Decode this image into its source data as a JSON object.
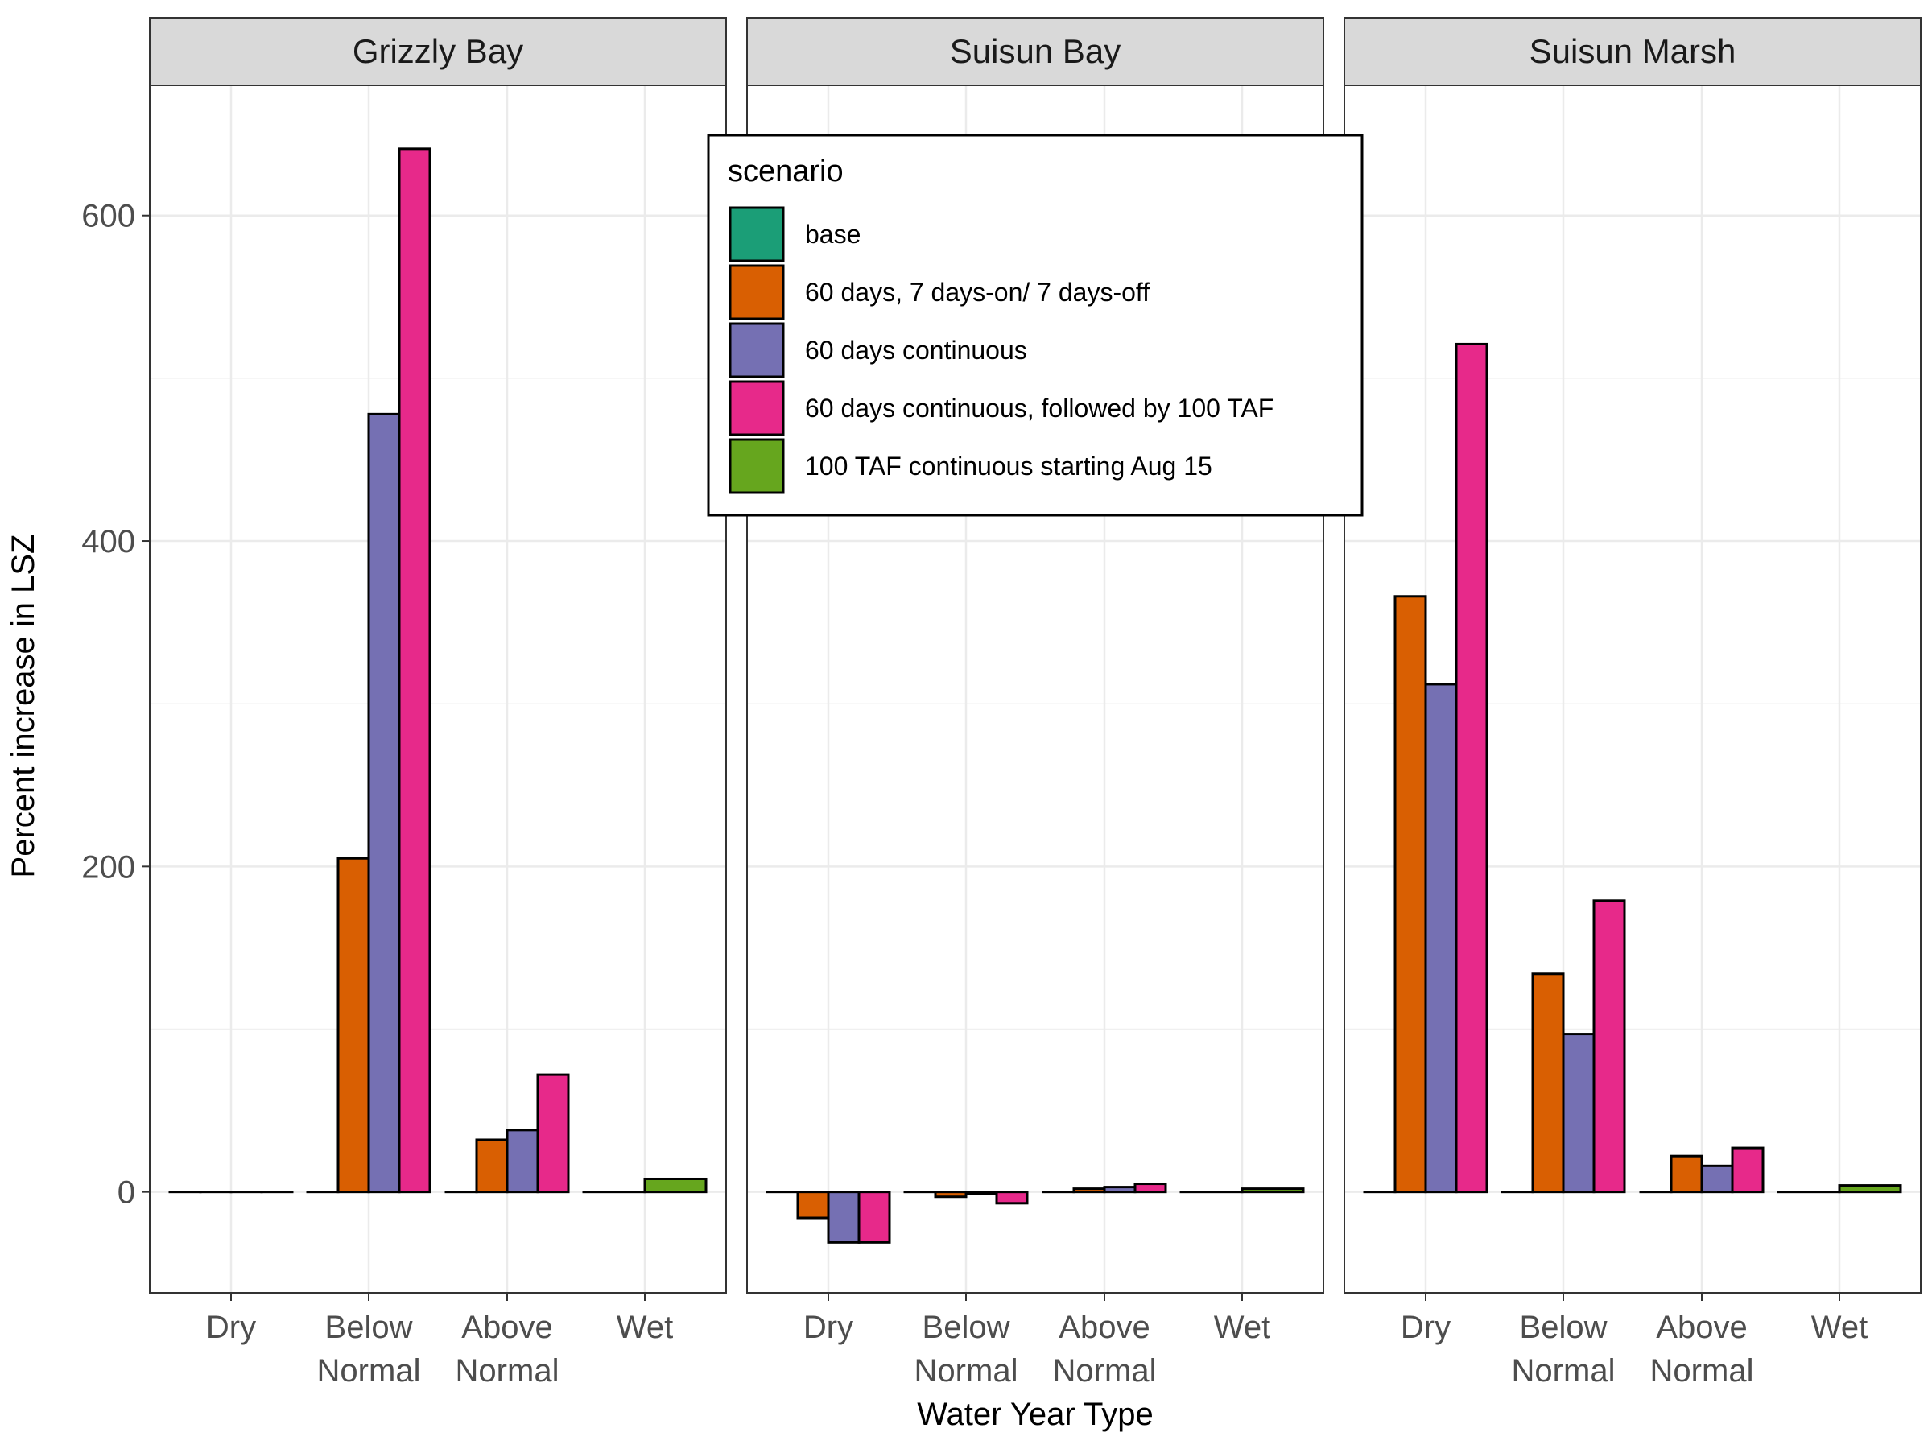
{
  "chart_data": {
    "type": "bar",
    "ylabel": "Percent increase in LSZ",
    "xlabel": "Water Year Type",
    "ylim": [
      -62,
      680
    ],
    "yticks": [
      0,
      200,
      400,
      600
    ],
    "grid": true,
    "legend_position": "top-center",
    "legend_title": "scenario",
    "categories": [
      [
        "Dry"
      ],
      [
        "Below",
        "Normal"
      ],
      [
        "Above",
        "Normal"
      ],
      [
        "Wet"
      ]
    ],
    "series": [
      {
        "name": "base",
        "color": "#1B9E77"
      },
      {
        "name": "60 days, 7 days-on/ 7 days-off",
        "color": "#D95F02"
      },
      {
        "name": "60 days continuous",
        "color": "#7570B3"
      },
      {
        "name": "60 days continuous, followed by 100 TAF",
        "color": "#E7298A"
      },
      {
        "name": "100 TAF continuous starting Aug 15",
        "color": "#66A61E"
      }
    ],
    "panels": [
      {
        "name": "Grizzly Bay",
        "groups": [
          [
            0,
            0,
            0,
            0
          ],
          [
            0,
            205,
            478,
            641
          ],
          [
            0,
            32,
            38,
            72
          ],
          [
            0,
            8
          ]
        ]
      },
      {
        "name": "Suisun Bay",
        "groups": [
          [
            0,
            -16,
            -31,
            -31
          ],
          [
            0,
            -3,
            -1,
            -7
          ],
          [
            0,
            2,
            3,
            5
          ],
          [
            0,
            2
          ]
        ]
      },
      {
        "name": "Suisun Marsh",
        "groups": [
          [
            0,
            366,
            312,
            521
          ],
          [
            0,
            134,
            97,
            179
          ],
          [
            0,
            22,
            16,
            27
          ],
          [
            0,
            4
          ]
        ]
      }
    ],
    "group_series_index": [
      [
        0,
        1,
        2,
        3
      ],
      [
        0,
        1,
        2,
        3
      ],
      [
        0,
        1,
        2,
        3
      ],
      [
        0,
        4
      ]
    ]
  }
}
